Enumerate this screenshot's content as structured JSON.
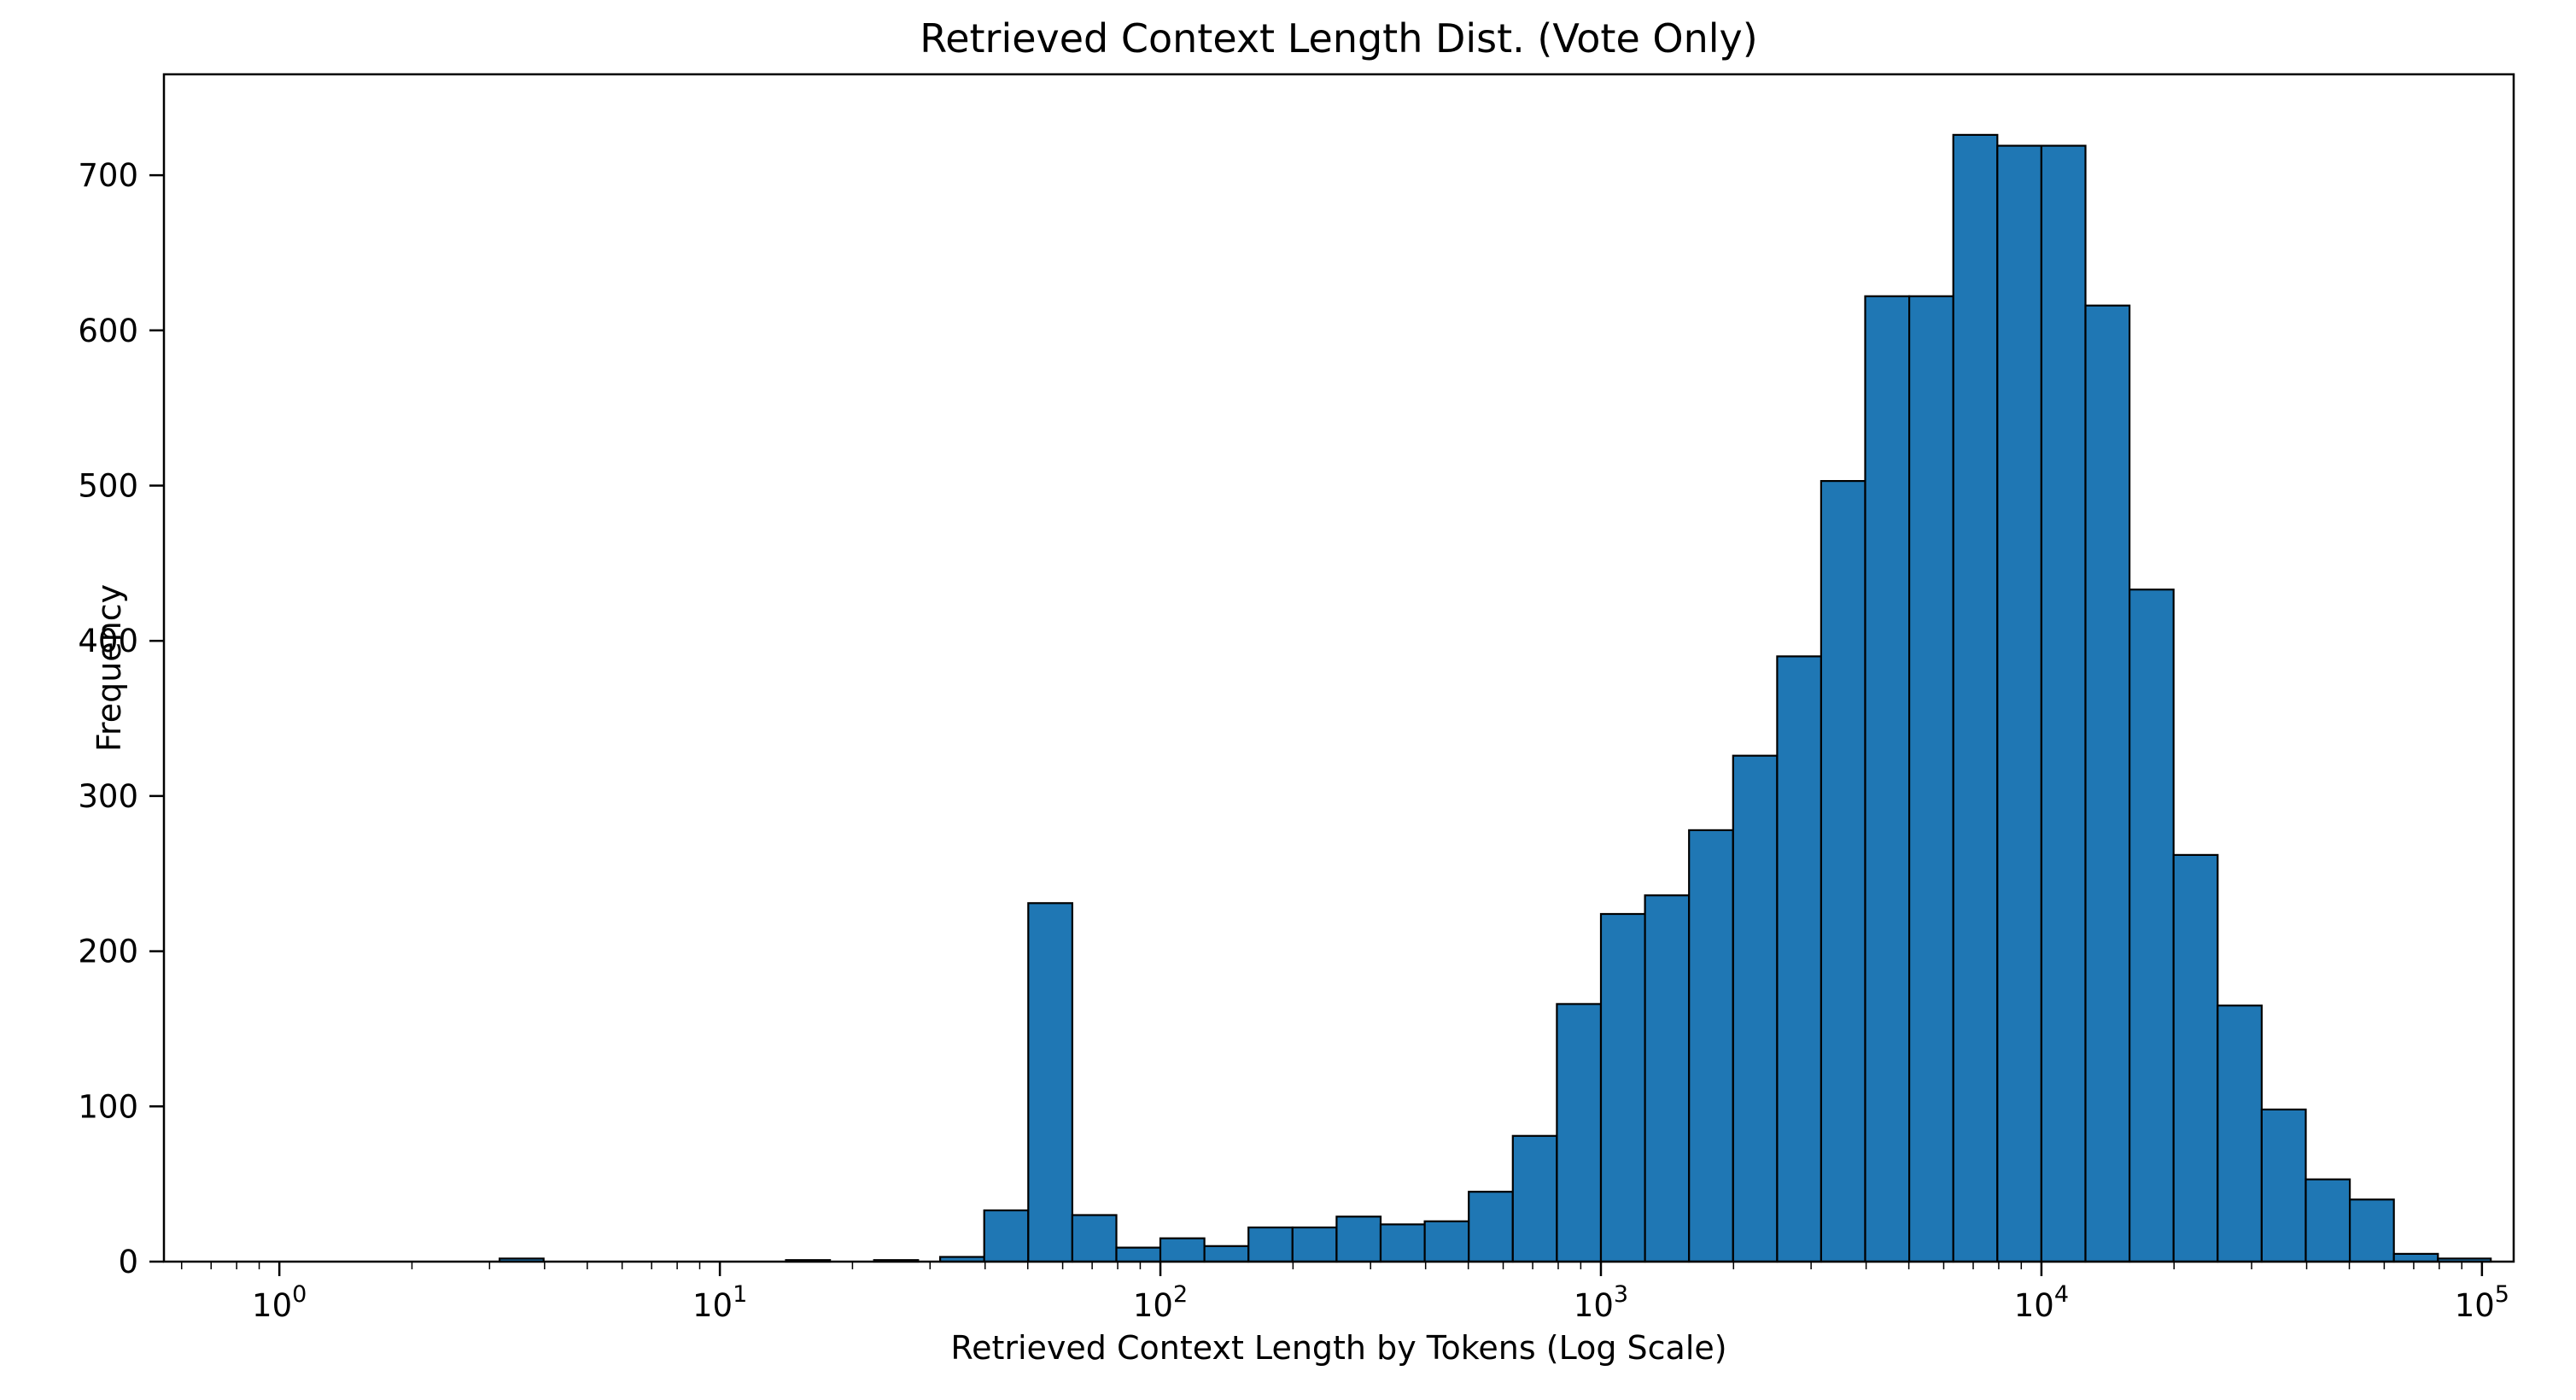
{
  "chart_data": {
    "type": "bar",
    "subtype": "histogram",
    "title": "Retrieved Context Length Dist. (Vote Only)",
    "xlabel": "Retrieved Context Length by Tokens (Log Scale)",
    "ylabel": "Frequency",
    "x_scale": "log10",
    "grid": false,
    "legend": "none",
    "xlim_log10": [
      -0.262,
      5.072
    ],
    "ylim": [
      0,
      765
    ],
    "yticks": [
      0,
      100,
      200,
      300,
      400,
      500,
      600,
      700
    ],
    "xtick_exponents": [
      0,
      1,
      2,
      3,
      4,
      5
    ],
    "bar_fill": "#1f77b4",
    "bar_edge": "#000000",
    "bins": [
      {
        "log10_left": 0.5,
        "log10_right": 0.6,
        "x_left": 3.2,
        "x_right": 4.0,
        "count": 2
      },
      {
        "log10_left": 1.15,
        "log10_right": 1.25,
        "x_left": 14.1,
        "x_right": 17.8,
        "count": 1
      },
      {
        "log10_left": 1.35,
        "log10_right": 1.45,
        "x_left": 22.4,
        "x_right": 28.2,
        "count": 1
      },
      {
        "log10_left": 1.5,
        "log10_right": 1.6,
        "x_left": 31.6,
        "x_right": 39.8,
        "count": 3
      },
      {
        "log10_left": 1.6,
        "log10_right": 1.7,
        "x_left": 39.8,
        "x_right": 50.1,
        "count": 33
      },
      {
        "log10_left": 1.7,
        "log10_right": 1.8,
        "x_left": 50.1,
        "x_right": 63.1,
        "count": 231
      },
      {
        "log10_left": 1.8,
        "log10_right": 1.9,
        "x_left": 63.1,
        "x_right": 79.4,
        "count": 30
      },
      {
        "log10_left": 1.9,
        "log10_right": 2.0,
        "x_left": 79.4,
        "x_right": 100,
        "count": 9
      },
      {
        "log10_left": 2.0,
        "log10_right": 2.1,
        "x_left": 100,
        "x_right": 126,
        "count": 15
      },
      {
        "log10_left": 2.1,
        "log10_right": 2.2,
        "x_left": 126,
        "x_right": 158,
        "count": 10
      },
      {
        "log10_left": 2.2,
        "log10_right": 2.3,
        "x_left": 158,
        "x_right": 200,
        "count": 22
      },
      {
        "log10_left": 2.3,
        "log10_right": 2.4,
        "x_left": 200,
        "x_right": 251,
        "count": 22
      },
      {
        "log10_left": 2.4,
        "log10_right": 2.5,
        "x_left": 251,
        "x_right": 316,
        "count": 29
      },
      {
        "log10_left": 2.5,
        "log10_right": 2.6,
        "x_left": 316,
        "x_right": 398,
        "count": 24
      },
      {
        "log10_left": 2.6,
        "log10_right": 2.7,
        "x_left": 398,
        "x_right": 501,
        "count": 26
      },
      {
        "log10_left": 2.7,
        "log10_right": 2.8,
        "x_left": 501,
        "x_right": 631,
        "count": 45
      },
      {
        "log10_left": 2.8,
        "log10_right": 2.9,
        "x_left": 631,
        "x_right": 794,
        "count": 81
      },
      {
        "log10_left": 2.9,
        "log10_right": 3.0,
        "x_left": 794,
        "x_right": 1000,
        "count": 166
      },
      {
        "log10_left": 3.0,
        "log10_right": 3.1,
        "x_left": 1000,
        "x_right": 1259,
        "count": 224
      },
      {
        "log10_left": 3.1,
        "log10_right": 3.2,
        "x_left": 1259,
        "x_right": 1585,
        "count": 236
      },
      {
        "log10_left": 3.2,
        "log10_right": 3.3,
        "x_left": 1585,
        "x_right": 1995,
        "count": 278
      },
      {
        "log10_left": 3.3,
        "log10_right": 3.4,
        "x_left": 1995,
        "x_right": 2512,
        "count": 326
      },
      {
        "log10_left": 3.4,
        "log10_right": 3.5,
        "x_left": 2512,
        "x_right": 3162,
        "count": 390
      },
      {
        "log10_left": 3.5,
        "log10_right": 3.6,
        "x_left": 3162,
        "x_right": 3981,
        "count": 503
      },
      {
        "log10_left": 3.6,
        "log10_right": 3.7,
        "x_left": 3981,
        "x_right": 5012,
        "count": 622
      },
      {
        "log10_left": 3.7,
        "log10_right": 3.8,
        "x_left": 5012,
        "x_right": 6310,
        "count": 622
      },
      {
        "log10_left": 3.8,
        "log10_right": 3.9,
        "x_left": 6310,
        "x_right": 7943,
        "count": 726
      },
      {
        "log10_left": 3.9,
        "log10_right": 4.0,
        "x_left": 7943,
        "x_right": 10000,
        "count": 719
      },
      {
        "log10_left": 4.0,
        "log10_right": 4.1,
        "x_left": 10000,
        "x_right": 12589,
        "count": 719
      },
      {
        "log10_left": 4.1,
        "log10_right": 4.2,
        "x_left": 12589,
        "x_right": 15849,
        "count": 616
      },
      {
        "log10_left": 4.2,
        "log10_right": 4.3,
        "x_left": 15849,
        "x_right": 19953,
        "count": 433
      },
      {
        "log10_left": 4.3,
        "log10_right": 4.4,
        "x_left": 19953,
        "x_right": 25119,
        "count": 262
      },
      {
        "log10_left": 4.4,
        "log10_right": 4.5,
        "x_left": 25119,
        "x_right": 31623,
        "count": 165
      },
      {
        "log10_left": 4.5,
        "log10_right": 4.6,
        "x_left": 31623,
        "x_right": 39811,
        "count": 98
      },
      {
        "log10_left": 4.6,
        "log10_right": 4.7,
        "x_left": 39811,
        "x_right": 50119,
        "count": 53
      },
      {
        "log10_left": 4.7,
        "log10_right": 4.8,
        "x_left": 50119,
        "x_right": 63096,
        "count": 40
      },
      {
        "log10_left": 4.8,
        "log10_right": 4.9,
        "x_left": 63096,
        "x_right": 79433,
        "count": 5
      },
      {
        "log10_left": 4.9,
        "log10_right": 5.02,
        "x_left": 79433,
        "x_right": 104713,
        "count": 2
      }
    ]
  }
}
